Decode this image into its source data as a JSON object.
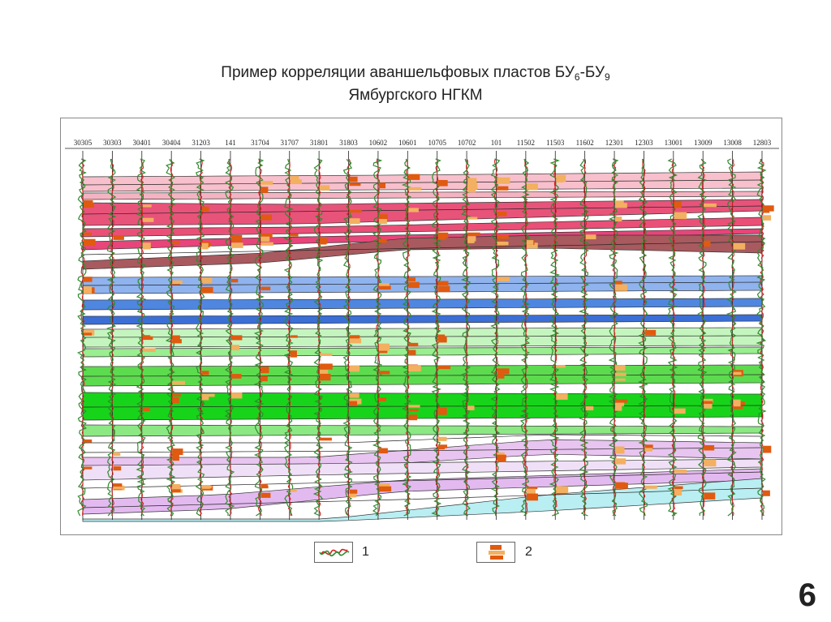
{
  "title": {
    "line1_prefix": "Пример корреляции аваншельфовых пластов БУ",
    "sub1": "6",
    "dash": "-БУ",
    "sub2": "9",
    "line2": "Ямбургского НГКМ"
  },
  "wells": [
    "30305",
    "30303",
    "30401",
    "30404",
    "31203",
    "141",
    "31704",
    "31707",
    "31801",
    "31803",
    "10602",
    "10601",
    "10705",
    "10702",
    "101",
    "11502",
    "11503",
    "11602",
    "12301",
    "12303",
    "13001",
    "13009",
    "13008",
    "12803"
  ],
  "colors": {
    "log_green": "#2e8b2e",
    "log_red": "#d42020",
    "interval_dark": "#e05a10",
    "interval_light": "#f2b060"
  },
  "layers": [
    {
      "name": "pink-light-1",
      "color": "#f7c0cc"
    },
    {
      "name": "pink-light-2",
      "color": "#f5b3c2"
    },
    {
      "name": "pink-dark-1",
      "color": "#e8537a"
    },
    {
      "name": "pink-dark-2",
      "color": "#ea4f77"
    },
    {
      "name": "pink-dark-3",
      "color": "#e8457a"
    },
    {
      "name": "brown",
      "color": "#a85a5f"
    },
    {
      "name": "blue-light",
      "color": "#8fb3ee"
    },
    {
      "name": "blue-mid",
      "color": "#4f86e0"
    },
    {
      "name": "blue-dark",
      "color": "#3b6fd6"
    },
    {
      "name": "green-pale",
      "color": "#c5f5bf"
    },
    {
      "name": "green-light",
      "color": "#99ee8f"
    },
    {
      "name": "green-mid",
      "color": "#5ddb4f"
    },
    {
      "name": "green-bright",
      "color": "#17d41a"
    },
    {
      "name": "green-thin",
      "color": "#8be883"
    },
    {
      "name": "violet-1",
      "color": "#e8c4f0"
    },
    {
      "name": "violet-2",
      "color": "#f0e0f7"
    },
    {
      "name": "violet-3",
      "color": "#e3baf0"
    },
    {
      "name": "cyan",
      "color": "#b9eef2"
    }
  ],
  "legend": [
    {
      "label": "1"
    },
    {
      "label": "2"
    }
  ],
  "page_number": "6"
}
